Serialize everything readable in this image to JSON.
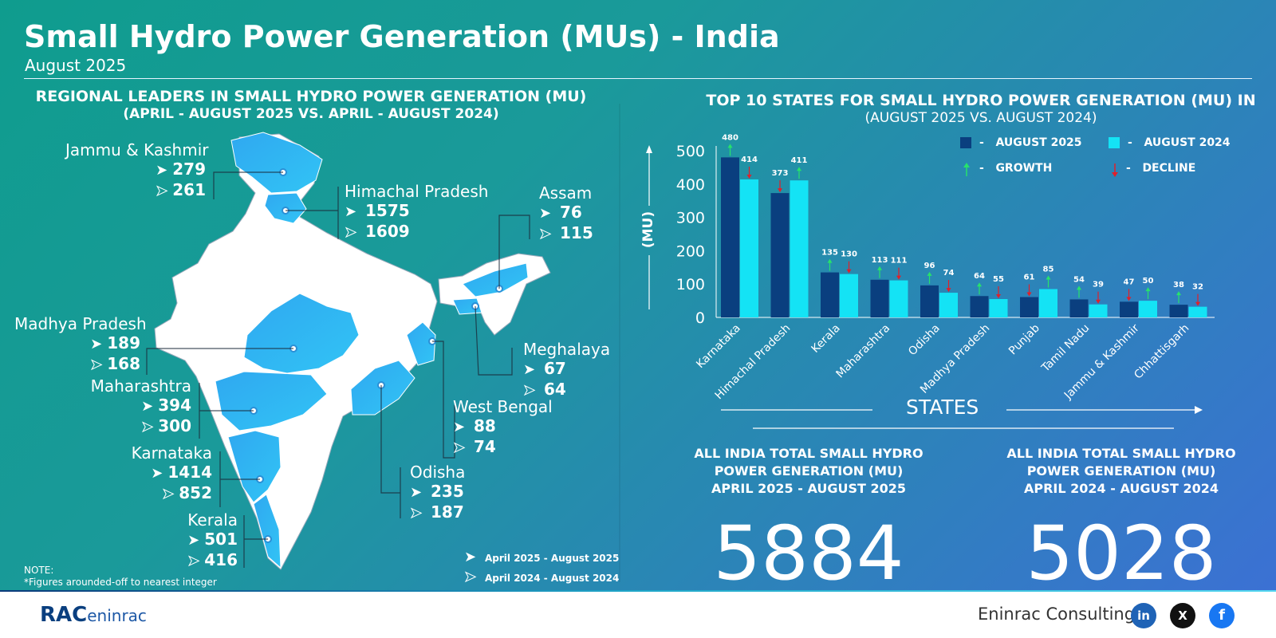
{
  "header": {
    "title": "Small Hydro Power Generation (MUs) - India",
    "subtitle": "August 2025"
  },
  "left_panel": {
    "title_line1": "REGIONAL LEADERS IN SMALL HYDRO POWER GENERATION (MU)",
    "title_line2": "(APRIL - AUGUST 2025 VS. APRIL - AUGUST 2024)",
    "regions": [
      {
        "name": "Jammu & Kashmir",
        "v2025": "279",
        "v2024": "261"
      },
      {
        "name": "Himachal Pradesh",
        "v2025": "1575",
        "v2024": "1609"
      },
      {
        "name": "Assam",
        "v2025": "76",
        "v2024": "115"
      },
      {
        "name": "Madhya Pradesh",
        "v2025": "189",
        "v2024": "168"
      },
      {
        "name": "Meghalaya",
        "v2025": "67",
        "v2024": "64"
      },
      {
        "name": "Maharashtra",
        "v2025": "394",
        "v2024": "300"
      },
      {
        "name": "West Bengal",
        "v2025": "88",
        "v2024": "74"
      },
      {
        "name": "Karnataka",
        "v2025": "1414",
        "v2024": "852"
      },
      {
        "name": "Odisha",
        "v2025": "235",
        "v2024": "187"
      },
      {
        "name": "Kerala",
        "v2025": "501",
        "v2024": "416"
      }
    ],
    "legend": {
      "current": "April 2025 - August 2025",
      "previous": "April 2024 - August 2024"
    },
    "note_line1": "NOTE:",
    "note_line2": "*Figures arounded-off to nearest integer",
    "map_fill_highlight": "#29b6f2",
    "map_fill_other": "#ffffff"
  },
  "right_panel": {
    "title_line1": "TOP 10 STATES FOR SMALL HYDRO POWER GENERATION (MU) IN",
    "title_line2": "(AUGUST 2025 VS. AUGUST 2024)",
    "legend": {
      "aug2025": "AUGUST 2025",
      "aug2024": "AUGUST 2024",
      "growth": "GROWTH",
      "decline": "DECLINE",
      "dash": "-"
    },
    "xaxis_title": "STATES",
    "totals": [
      {
        "label_line1": "ALL INDIA TOTAL SMALL HYDRO",
        "label_line2": "POWER GENERATION (MU)",
        "label_line3": "APRIL 2025 - AUGUST 2025",
        "value": "5884"
      },
      {
        "label_line1": "ALL INDIA TOTAL SMALL HYDRO",
        "label_line2": "POWER GENERATION (MU)",
        "label_line3": "APRIL 2024 - AUGUST 2024",
        "value": "5028"
      }
    ]
  },
  "chart_data": {
    "type": "bar",
    "title": "TOP 10 STATES FOR SMALL HYDRO POWER GENERATION (MU) IN (AUGUST 2025 VS. AUGUST 2024)",
    "xlabel": "STATES",
    "ylabel": "(MU)",
    "ylim": [
      0,
      500
    ],
    "yticks": [
      0,
      100,
      200,
      300,
      400,
      500
    ],
    "categories": [
      "Karnataka",
      "Himachal Pradesh",
      "Kerala",
      "Maharashtra",
      "Odisha",
      "Madhya Pradesh",
      "Punjab",
      "Tamil Nadu",
      "Jammu & Kashmir",
      "Chhattisgarh"
    ],
    "series": [
      {
        "name": "AUGUST 2025",
        "color": "#0a3f7f",
        "values": [
          480,
          373,
          135,
          113,
          96,
          64,
          61,
          54,
          47,
          38
        ],
        "trend": [
          "growth",
          "decline",
          "growth",
          "growth",
          "growth",
          "growth",
          "decline",
          "growth",
          "decline",
          "growth"
        ]
      },
      {
        "name": "AUGUST 2024",
        "color": "#14e3f5",
        "values": [
          414,
          411,
          130,
          111,
          74,
          55,
          85,
          39,
          50,
          32
        ],
        "trend": [
          "decline",
          "growth",
          "decline",
          "decline",
          "decline",
          "decline",
          "growth",
          "decline",
          "growth",
          "decline"
        ]
      }
    ],
    "growth_color": "#27e36b",
    "decline_color": "#e0202a"
  },
  "footer": {
    "brand": "Eninrac Consulting",
    "logo_text": "RAC",
    "logo_text2": "eninrac",
    "social": [
      "in",
      "X",
      "f"
    ]
  }
}
